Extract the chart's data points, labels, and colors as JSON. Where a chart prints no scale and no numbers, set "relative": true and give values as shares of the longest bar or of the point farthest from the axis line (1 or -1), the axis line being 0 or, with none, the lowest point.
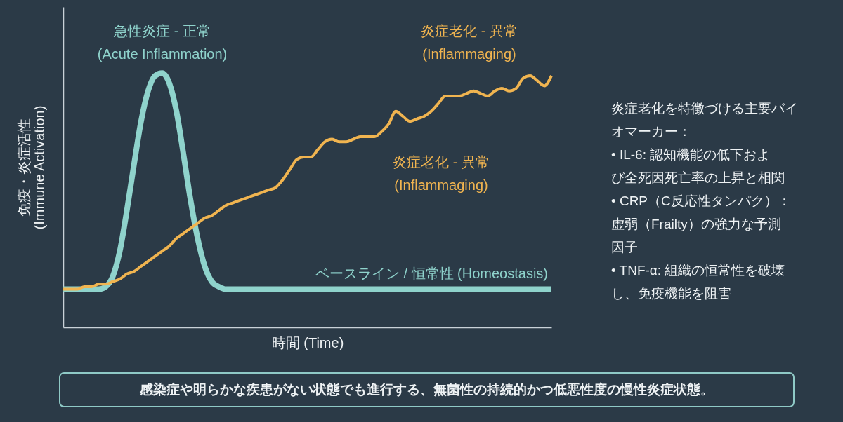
{
  "chart_data": {
    "type": "line",
    "relative": true,
    "xlabel": "時間 (Time)",
    "ylabel": "免疫・炎症活性 (Immune Activation)",
    "categories": [
      null,
      null,
      null,
      null,
      null,
      null,
      null,
      null,
      null,
      null,
      null,
      null,
      null,
      null,
      null,
      null,
      null,
      null,
      null,
      null,
      null,
      null,
      null,
      null,
      null,
      null,
      null,
      null,
      null,
      null,
      null,
      null,
      null,
      null,
      null,
      null,
      null,
      null,
      null,
      null,
      null,
      null,
      null,
      null,
      null,
      null,
      null,
      null,
      null,
      null,
      null,
      null,
      null,
      null,
      null,
      null,
      null,
      null,
      null,
      null,
      null,
      null,
      null,
      null,
      null,
      null,
      null,
      null,
      null,
      null
    ],
    "series": [
      {
        "name": "急性炎症 - 正常 (Acute Inflammation)",
        "color": "#8fd3cc",
        "values": [
          0.15,
          0.15,
          0.15,
          0.15,
          0.15,
          0.15,
          0.16,
          0.2,
          0.3,
          0.46,
          0.64,
          0.81,
          0.93,
          0.99,
          1.0,
          0.96,
          0.85,
          0.68,
          0.5,
          0.35,
          0.24,
          0.18,
          0.16,
          0.15,
          0.15,
          0.15,
          0.15,
          0.15,
          0.15,
          0.15,
          0.15,
          0.15,
          0.15,
          0.15,
          0.15,
          0.15,
          0.15,
          0.15,
          0.15,
          0.15,
          0.15,
          0.15,
          0.15,
          0.15,
          0.15,
          0.15,
          0.15,
          0.15,
          0.15,
          0.15,
          0.15,
          0.15,
          0.15,
          0.15,
          0.15,
          0.15,
          0.15,
          0.15,
          0.15,
          0.15,
          0.15,
          0.15,
          0.15,
          0.15,
          0.15,
          0.15,
          0.15,
          0.15,
          0.15,
          0.15
        ]
      },
      {
        "name": "炎症老化 - 異常 (Inflammaging)",
        "color": "#f0b450",
        "values": [
          0.15,
          0.15,
          0.15,
          0.16,
          0.16,
          0.17,
          0.17,
          0.18,
          0.19,
          0.21,
          0.22,
          0.24,
          0.26,
          0.28,
          0.3,
          0.32,
          0.35,
          0.37,
          0.39,
          0.41,
          0.43,
          0.44,
          0.46,
          0.48,
          0.49,
          0.5,
          0.51,
          0.52,
          0.53,
          0.54,
          0.55,
          0.58,
          0.62,
          0.66,
          0.67,
          0.67,
          0.7,
          0.73,
          0.74,
          0.73,
          0.73,
          0.74,
          0.75,
          0.75,
          0.75,
          0.77,
          0.8,
          0.85,
          0.83,
          0.81,
          0.82,
          0.83,
          0.85,
          0.88,
          0.91,
          0.91,
          0.91,
          0.92,
          0.93,
          0.92,
          0.91,
          0.93,
          0.94,
          0.93,
          0.94,
          0.98,
          0.99,
          0.97,
          0.95,
          0.99
        ]
      }
    ],
    "annotations": [
      {
        "text": "ベースライン / 恒常性 (Homeostasis)",
        "y": 0.15
      },
      "炎症老化 - 異常 (Inflammaging)",
      "炎症老化を特徴づける主要バイオマーカー：",
      "• IL-6: 認知機能の低下および全死因死亡率の上昇と相関",
      "• CRP（C反応性タンパク）：虚弱（Frailty）の強力な予測因子",
      "• TNF-α: 組織の恒常性を破壊し、免疫機能を阻害",
      "感染症や明らかな疾患がない状態でも進行する、無菌性の持続的かつ低悪性度の慢性炎症状態。"
    ]
  }
}
